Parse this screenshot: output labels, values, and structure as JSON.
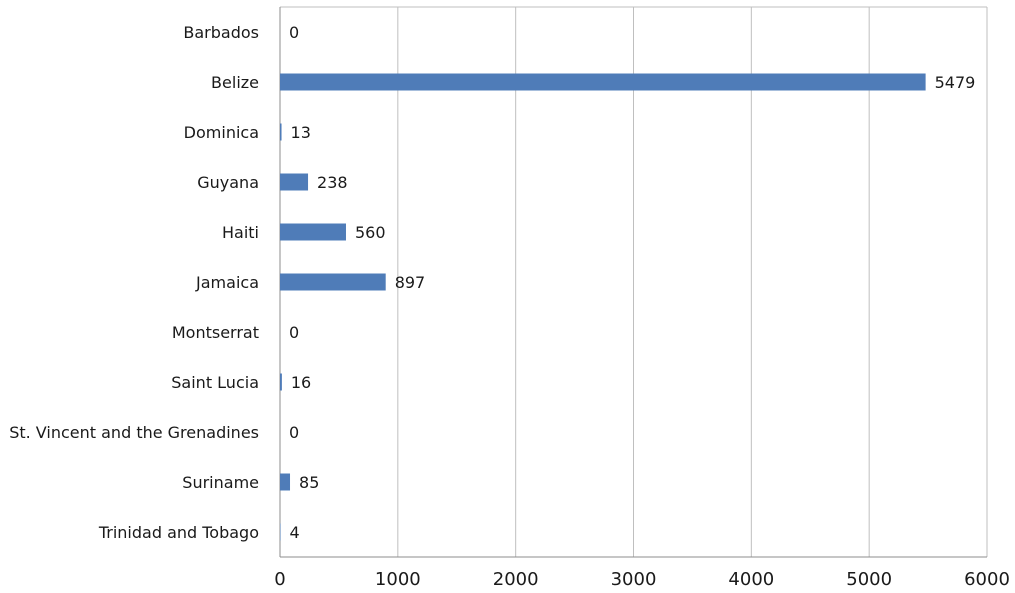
{
  "chart_data": {
    "type": "bar",
    "orientation": "horizontal",
    "categories": [
      "Barbados",
      "Belize",
      "Dominica",
      "Guyana",
      "Haiti",
      "Jamaica",
      "Montserrat",
      "Saint Lucia",
      "St. Vincent and the Grenadines",
      "Suriname",
      "Trinidad and Tobago"
    ],
    "values": [
      0,
      5479,
      13,
      238,
      560,
      897,
      0,
      16,
      0,
      85,
      4
    ],
    "data_labels": [
      "0",
      "5479",
      "13",
      "238",
      "560",
      "897",
      "0",
      "16",
      "0",
      "85",
      "4"
    ],
    "title": "",
    "xlabel": "",
    "ylabel": "",
    "xlim": [
      0,
      6000
    ],
    "x_ticks": [
      0,
      1000,
      2000,
      3000,
      4000,
      5000,
      6000
    ],
    "x_tick_labels": [
      "0",
      "1000",
      "2000",
      "3000",
      "4000",
      "5000",
      "6000"
    ],
    "grid": "vertical",
    "legend": "none",
    "colors": {
      "bar": "#4f7cb8",
      "grid": "#bfbfbf",
      "axis": "#8c8c8c"
    }
  }
}
